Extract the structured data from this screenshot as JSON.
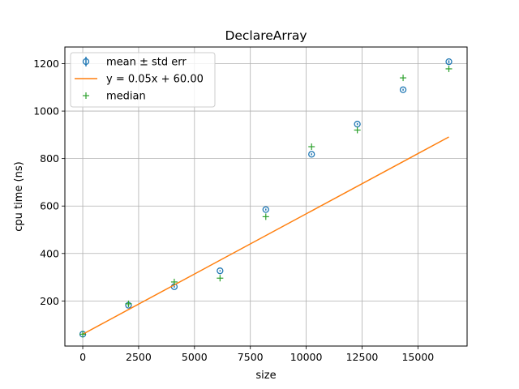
{
  "chart_data": {
    "type": "scatter",
    "title": "DeclareArray",
    "xlabel": "size",
    "ylabel": "cpu time (ns)",
    "xlim": [
      -800,
      17200
    ],
    "ylim": [
      10,
      1270
    ],
    "xticks": [
      0,
      2500,
      5000,
      7500,
      10000,
      12500,
      15000
    ],
    "xtick_labels": [
      "0",
      "2500",
      "5000",
      "7500",
      "10000",
      "12500",
      "15000"
    ],
    "yticks": [
      200,
      400,
      600,
      800,
      1000,
      1200
    ],
    "ytick_labels": [
      "200",
      "400",
      "600",
      "800",
      "1000",
      "1200"
    ],
    "grid": true,
    "legend_position": "top-left",
    "series": [
      {
        "name": "mean ± std err",
        "kind": "errorbar",
        "color": "#1f77b4",
        "x": [
          1,
          2048,
          4096,
          6144,
          8192,
          10240,
          12288,
          14336,
          16384
        ],
        "y": [
          60,
          182,
          260,
          327,
          585,
          818,
          945,
          1090,
          1208
        ],
        "err": [
          4,
          4,
          4,
          3,
          4,
          4,
          4,
          4,
          6
        ]
      },
      {
        "name": "y = 0.05x + 60.00",
        "kind": "line",
        "color": "#ff7f0e",
        "x": [
          1,
          16384
        ],
        "y": [
          60,
          891
        ]
      },
      {
        "name": "median",
        "kind": "marker",
        "color": "#2ca02c",
        "x": [
          1,
          2048,
          4096,
          6144,
          8192,
          10240,
          12288,
          14336,
          16384
        ],
        "y": [
          60,
          188,
          280,
          296,
          555,
          850,
          920,
          1140,
          1178
        ]
      }
    ]
  }
}
